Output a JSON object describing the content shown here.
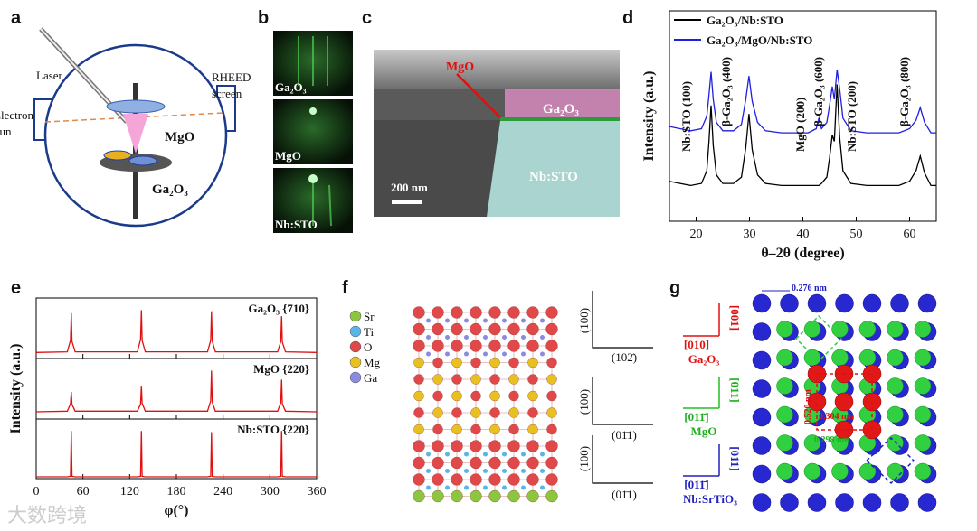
{
  "figure": {
    "panel_labels": [
      "a",
      "b",
      "c",
      "d",
      "e",
      "f",
      "g"
    ],
    "a": {
      "laser": "Laser",
      "rheed": [
        "RHEED",
        "screen"
      ],
      "gun": [
        "Electron",
        "gun"
      ],
      "mgo": "MgO",
      "ga2o3": "Ga₂O₃"
    },
    "b": {
      "patterns": [
        "Ga₂O₃",
        "MgO",
        "Nb:STO"
      ]
    },
    "c": {
      "mgo": "MgO",
      "ga2o3": "Ga₂O₃",
      "substrate": "Nb:STO",
      "scale": "200 nm"
    },
    "f": {
      "legend": [
        {
          "label": "Sr",
          "color": "#8cc63f"
        },
        {
          "label": "Ti",
          "color": "#5ab4e6"
        },
        {
          "label": "O",
          "color": "#e0484a"
        },
        {
          "label": "Mg",
          "color": "#e8c020"
        },
        {
          "label": "Ga",
          "color": "#8a8ae0"
        }
      ],
      "axes": [
        [
          "(100)",
          "(102̄)"
        ],
        [
          "(100)",
          "(01̄1)"
        ],
        [
          "(100)",
          "(01̄1)"
        ]
      ]
    },
    "g": {
      "spacing_top": "0.276 nm",
      "ga2o3": [
        "[001]",
        "[010]",
        "Ga₂O₃"
      ],
      "mgo": [
        "[011]",
        "[011̄]",
        "MgO"
      ],
      "sto": [
        "[011]",
        "[011̄]",
        "Nb:SrTiO₃"
      ],
      "red_v": "0.520 nm",
      "red_h": "0.304 nm",
      "green": "0.298 nm"
    },
    "watermark": "大数跨境"
  },
  "chart_data": [
    {
      "type": "line",
      "xlabel": "θ–2θ (degree)",
      "ylabel": "Intensity (a.u.)",
      "legend": "upper left",
      "xlim": [
        15,
        65
      ],
      "xticks": [
        20,
        30,
        40,
        50,
        60
      ],
      "ylim": [
        0,
        100
      ],
      "x": [
        15,
        17,
        19,
        21,
        22,
        22.4,
        22.8,
        23.2,
        23.8,
        25,
        27,
        28.5,
        29.3,
        29.9,
        30.5,
        31.5,
        33,
        36,
        39,
        41,
        42.5,
        43,
        43.5,
        44.5,
        45,
        45.5,
        45.9,
        46.4,
        46.9,
        47.5,
        49,
        52,
        55,
        58,
        60,
        61.2,
        62,
        62.8,
        64,
        65
      ],
      "series": [
        {
          "name": "Ga₂O₃/Nb:STO",
          "color": "#000000",
          "values": [
            19,
            18,
            17,
            18,
            24,
            38,
            55,
            36,
            22,
            18,
            18,
            21,
            35,
            51,
            34,
            22,
            18,
            17,
            17,
            17,
            17,
            17,
            18,
            21,
            30,
            41,
            38,
            65,
            40,
            24,
            18,
            17,
            17,
            17,
            19,
            24,
            31,
            23,
            17,
            17
          ]
        },
        {
          "name": "Ga₂O₃/MgO/Nb:STO",
          "color": "#1f1fe0",
          "values": [
            45,
            44,
            43,
            44,
            50,
            60,
            71,
            58,
            47,
            43,
            43,
            46,
            58,
            69,
            57,
            47,
            43,
            42,
            42,
            42,
            44,
            49,
            44,
            47,
            55,
            64,
            58,
            72,
            63,
            49,
            43,
            42,
            42,
            42,
            44,
            48,
            54,
            47,
            42,
            42
          ]
        }
      ],
      "annotations": [
        {
          "text": "Nb:STO (100)",
          "color": "#000000"
        },
        {
          "text": "β-Ga₂O₃ (400)",
          "color": "#000000"
        },
        {
          "text": "MgO (200)",
          "color": "#e02020"
        },
        {
          "text": "β-Ga₂O₃ (600)",
          "color": "#000000"
        },
        {
          "text": "Nb:STO (200)",
          "color": "#000000"
        },
        {
          "text": "β-Ga₂O₃ (800)",
          "color": "#000000"
        }
      ]
    },
    {
      "type": "line",
      "xlim": [
        0,
        360
      ],
      "xticks": [
        0,
        60,
        120,
        180,
        240,
        300,
        360
      ],
      "ylim": [
        0,
        100
      ],
      "x": [
        0,
        40,
        44,
        45,
        46,
        50,
        130,
        134,
        135,
        136,
        140,
        220,
        224,
        225,
        226,
        230,
        310,
        314,
        315,
        316,
        320,
        360
      ],
      "series": [
        {
          "name": "Ga₂O₃ {710}",
          "color": "#e01010",
          "values": [
            10,
            11,
            30,
            75,
            28,
            11,
            11,
            32,
            80,
            30,
            11,
            11,
            30,
            78,
            29,
            11,
            11,
            28,
            70,
            27,
            11,
            10
          ]
        }
      ]
    },
    {
      "type": "line",
      "ylabel": "Intensity (a.u.)",
      "xlim": [
        0,
        360
      ],
      "xticks": [
        0,
        60,
        120,
        180,
        240,
        300,
        360
      ],
      "ylim": [
        0,
        100
      ],
      "x": [
        0,
        40,
        44,
        45,
        46,
        50,
        130,
        134,
        135,
        136,
        140,
        220,
        224,
        225,
        226,
        230,
        310,
        314,
        315,
        316,
        320,
        360
      ],
      "series": [
        {
          "name": "MgO {220}",
          "color": "#e01010",
          "values": [
            12,
            13,
            25,
            45,
            24,
            13,
            13,
            25,
            55,
            26,
            13,
            13,
            30,
            80,
            28,
            13,
            13,
            27,
            65,
            25,
            13,
            12
          ]
        }
      ]
    },
    {
      "type": "line",
      "xlabel": "φ(°)",
      "xlim": [
        0,
        360
      ],
      "xticks": [
        0,
        60,
        120,
        180,
        240,
        300,
        360
      ],
      "ylim": [
        0,
        100
      ],
      "x": [
        0,
        40,
        44,
        45,
        46,
        50,
        130,
        134,
        135,
        136,
        140,
        220,
        224,
        225,
        226,
        230,
        310,
        314,
        315,
        316,
        320,
        360
      ],
      "series": [
        {
          "name": "Nb:STO {220}",
          "color": "#e01010",
          "values": [
            3,
            3,
            4,
            80,
            4,
            3,
            3,
            4,
            80,
            4,
            3,
            3,
            4,
            78,
            4,
            3,
            3,
            4,
            80,
            4,
            3,
            3
          ]
        }
      ]
    }
  ]
}
